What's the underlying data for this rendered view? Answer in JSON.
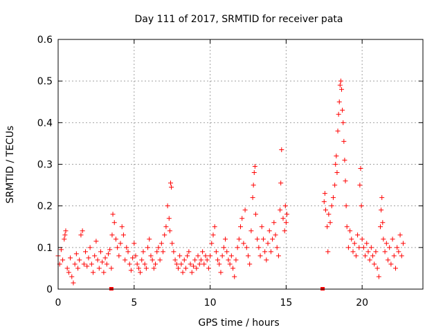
{
  "chart_data": {
    "type": "scatter",
    "title": "Day 111 of 2017, SRMTID for receiver pata",
    "xlabel": "GPS time / hours",
    "ylabel": "SRMTID / TECUs",
    "xlim": [
      0,
      24
    ],
    "ylim": [
      0,
      0.6
    ],
    "xticks": [
      0,
      5,
      10,
      15,
      20
    ],
    "xtick_labels": [
      "0",
      "5",
      "10",
      "15",
      "20"
    ],
    "yticks": [
      0,
      0.1,
      0.2,
      0.3,
      0.4,
      0.5,
      0.6
    ],
    "ytick_labels": [
      "0",
      "0.1",
      "0.2",
      "0.3",
      "0.4",
      "0.5",
      "0.6"
    ],
    "grid": true,
    "marker": "+",
    "color": "#ff0000",
    "series": [
      {
        "name": "SRMTID",
        "points": [
          [
            0.0,
            0.08
          ],
          [
            0.1,
            0.06
          ],
          [
            0.2,
            0.095
          ],
          [
            0.3,
            0.07
          ],
          [
            0.4,
            0.12
          ],
          [
            0.45,
            0.13
          ],
          [
            0.5,
            0.14
          ],
          [
            0.6,
            0.05
          ],
          [
            0.7,
            0.04
          ],
          [
            0.8,
            0.075
          ],
          [
            0.9,
            0.03
          ],
          [
            1.0,
            0.015
          ],
          [
            1.1,
            0.06
          ],
          [
            1.2,
            0.085
          ],
          [
            1.3,
            0.05
          ],
          [
            1.4,
            0.07
          ],
          [
            1.5,
            0.13
          ],
          [
            1.6,
            0.14
          ],
          [
            1.7,
            0.06
          ],
          [
            1.8,
            0.09
          ],
          [
            1.9,
            0.055
          ],
          [
            2.0,
            0.075
          ],
          [
            2.1,
            0.1
          ],
          [
            2.2,
            0.06
          ],
          [
            2.3,
            0.04
          ],
          [
            2.4,
            0.08
          ],
          [
            2.5,
            0.115
          ],
          [
            2.6,
            0.07
          ],
          [
            2.7,
            0.05
          ],
          [
            2.8,
            0.09
          ],
          [
            2.9,
            0.065
          ],
          [
            3.0,
            0.04
          ],
          [
            3.1,
            0.075
          ],
          [
            3.2,
            0.06
          ],
          [
            3.3,
            0.085
          ],
          [
            3.4,
            0.095
          ],
          [
            3.5,
            0.05
          ],
          [
            3.55,
            0.13
          ],
          [
            3.6,
            0.18
          ],
          [
            3.7,
            0.16
          ],
          [
            3.8,
            0.12
          ],
          [
            3.9,
            0.1
          ],
          [
            4.0,
            0.08
          ],
          [
            4.1,
            0.11
          ],
          [
            4.2,
            0.15
          ],
          [
            4.3,
            0.13
          ],
          [
            4.4,
            0.07
          ],
          [
            4.5,
            0.1
          ],
          [
            4.6,
            0.09
          ],
          [
            4.7,
            0.06
          ],
          [
            4.8,
            0.045
          ],
          [
            4.9,
            0.075
          ],
          [
            5.0,
            0.11
          ],
          [
            5.1,
            0.08
          ],
          [
            5.2,
            0.06
          ],
          [
            5.3,
            0.05
          ],
          [
            5.4,
            0.04
          ],
          [
            5.5,
            0.07
          ],
          [
            5.6,
            0.09
          ],
          [
            5.7,
            0.06
          ],
          [
            5.8,
            0.05
          ],
          [
            5.9,
            0.1
          ],
          [
            6.0,
            0.12
          ],
          [
            6.1,
            0.08
          ],
          [
            6.2,
            0.07
          ],
          [
            6.3,
            0.05
          ],
          [
            6.4,
            0.06
          ],
          [
            6.5,
            0.09
          ],
          [
            6.6,
            0.1
          ],
          [
            6.7,
            0.07
          ],
          [
            6.8,
            0.11
          ],
          [
            6.9,
            0.09
          ],
          [
            7.0,
            0.13
          ],
          [
            7.1,
            0.15
          ],
          [
            7.2,
            0.2
          ],
          [
            7.3,
            0.17
          ],
          [
            7.35,
            0.14
          ],
          [
            7.4,
            0.255
          ],
          [
            7.45,
            0.245
          ],
          [
            7.5,
            0.11
          ],
          [
            7.6,
            0.09
          ],
          [
            7.7,
            0.07
          ],
          [
            7.8,
            0.06
          ],
          [
            7.9,
            0.05
          ],
          [
            8.0,
            0.08
          ],
          [
            8.1,
            0.06
          ],
          [
            8.2,
            0.04
          ],
          [
            8.3,
            0.07
          ],
          [
            8.4,
            0.05
          ],
          [
            8.5,
            0.08
          ],
          [
            8.6,
            0.09
          ],
          [
            8.7,
            0.06
          ],
          [
            8.8,
            0.04
          ],
          [
            8.9,
            0.055
          ],
          [
            9.0,
            0.07
          ],
          [
            9.1,
            0.05
          ],
          [
            9.2,
            0.08
          ],
          [
            9.3,
            0.06
          ],
          [
            9.4,
            0.07
          ],
          [
            9.5,
            0.09
          ],
          [
            9.6,
            0.06
          ],
          [
            9.7,
            0.08
          ],
          [
            9.8,
            0.07
          ],
          [
            9.9,
            0.05
          ],
          [
            10.0,
            0.08
          ],
          [
            10.1,
            0.11
          ],
          [
            10.2,
            0.13
          ],
          [
            10.3,
            0.15
          ],
          [
            10.4,
            0.09
          ],
          [
            10.5,
            0.07
          ],
          [
            10.6,
            0.06
          ],
          [
            10.7,
            0.04
          ],
          [
            10.8,
            0.08
          ],
          [
            10.9,
            0.1
          ],
          [
            11.0,
            0.12
          ],
          [
            11.1,
            0.09
          ],
          [
            11.2,
            0.07
          ],
          [
            11.3,
            0.06
          ],
          [
            11.4,
            0.08
          ],
          [
            11.5,
            0.05
          ],
          [
            11.6,
            0.03
          ],
          [
            11.7,
            0.07
          ],
          [
            11.8,
            0.1
          ],
          [
            11.9,
            0.12
          ],
          [
            12.0,
            0.15
          ],
          [
            12.1,
            0.17
          ],
          [
            12.2,
            0.11
          ],
          [
            12.3,
            0.19
          ],
          [
            12.4,
            0.1
          ],
          [
            12.5,
            0.08
          ],
          [
            12.6,
            0.06
          ],
          [
            12.7,
            0.14
          ],
          [
            12.8,
            0.22
          ],
          [
            12.85,
            0.25
          ],
          [
            12.9,
            0.28
          ],
          [
            12.95,
            0.295
          ],
          [
            13.0,
            0.18
          ],
          [
            13.1,
            0.12
          ],
          [
            13.2,
            0.1
          ],
          [
            13.3,
            0.08
          ],
          [
            13.4,
            0.15
          ],
          [
            13.5,
            0.12
          ],
          [
            13.6,
            0.09
          ],
          [
            13.7,
            0.07
          ],
          [
            13.8,
            0.11
          ],
          [
            13.9,
            0.14
          ],
          [
            14.0,
            0.09
          ],
          [
            14.1,
            0.12
          ],
          [
            14.2,
            0.16
          ],
          [
            14.3,
            0.13
          ],
          [
            14.4,
            0.1
          ],
          [
            14.5,
            0.08
          ],
          [
            14.6,
            0.19
          ],
          [
            14.65,
            0.255
          ],
          [
            14.7,
            0.335
          ],
          [
            14.8,
            0.17
          ],
          [
            14.9,
            0.14
          ],
          [
            14.95,
            0.2
          ],
          [
            15.0,
            0.16
          ],
          [
            15.05,
            0.18
          ],
          [
            17.5,
            0.21
          ],
          [
            17.55,
            0.23
          ],
          [
            17.6,
            0.19
          ],
          [
            17.7,
            0.15
          ],
          [
            17.75,
            0.09
          ],
          [
            17.8,
            0.18
          ],
          [
            17.9,
            0.16
          ],
          [
            18.0,
            0.2
          ],
          [
            18.1,
            0.22
          ],
          [
            18.2,
            0.25
          ],
          [
            18.25,
            0.3
          ],
          [
            18.3,
            0.32
          ],
          [
            18.35,
            0.28
          ],
          [
            18.4,
            0.38
          ],
          [
            18.45,
            0.42
          ],
          [
            18.5,
            0.45
          ],
          [
            18.55,
            0.49
          ],
          [
            18.6,
            0.5
          ],
          [
            18.65,
            0.48
          ],
          [
            18.7,
            0.43
          ],
          [
            18.75,
            0.4
          ],
          [
            18.8,
            0.355
          ],
          [
            18.85,
            0.31
          ],
          [
            18.9,
            0.26
          ],
          [
            18.95,
            0.2
          ],
          [
            19.0,
            0.15
          ],
          [
            19.1,
            0.1
          ],
          [
            19.2,
            0.14
          ],
          [
            19.3,
            0.12
          ],
          [
            19.4,
            0.09
          ],
          [
            19.5,
            0.11
          ],
          [
            19.6,
            0.08
          ],
          [
            19.7,
            0.13
          ],
          [
            19.8,
            0.1
          ],
          [
            19.85,
            0.25
          ],
          [
            19.9,
            0.29
          ],
          [
            19.95,
            0.2
          ],
          [
            20.0,
            0.12
          ],
          [
            20.1,
            0.1
          ],
          [
            20.2,
            0.08
          ],
          [
            20.3,
            0.11
          ],
          [
            20.4,
            0.09
          ],
          [
            20.5,
            0.07
          ],
          [
            20.6,
            0.1
          ],
          [
            20.7,
            0.08
          ],
          [
            20.8,
            0.06
          ],
          [
            20.9,
            0.09
          ],
          [
            21.0,
            0.05
          ],
          [
            21.1,
            0.03
          ],
          [
            21.2,
            0.15
          ],
          [
            21.25,
            0.19
          ],
          [
            21.3,
            0.22
          ],
          [
            21.35,
            0.16
          ],
          [
            21.4,
            0.12
          ],
          [
            21.5,
            0.09
          ],
          [
            21.6,
            0.11
          ],
          [
            21.7,
            0.07
          ],
          [
            21.8,
            0.1
          ],
          [
            21.9,
            0.06
          ],
          [
            22.0,
            0.12
          ],
          [
            22.1,
            0.08
          ],
          [
            22.2,
            0.05
          ],
          [
            22.3,
            0.1
          ],
          [
            22.4,
            0.09
          ],
          [
            22.5,
            0.13
          ],
          [
            22.6,
            0.08
          ],
          [
            22.7,
            0.11
          ]
        ]
      }
    ],
    "zero_markers": [
      3.5,
      17.4
    ]
  }
}
